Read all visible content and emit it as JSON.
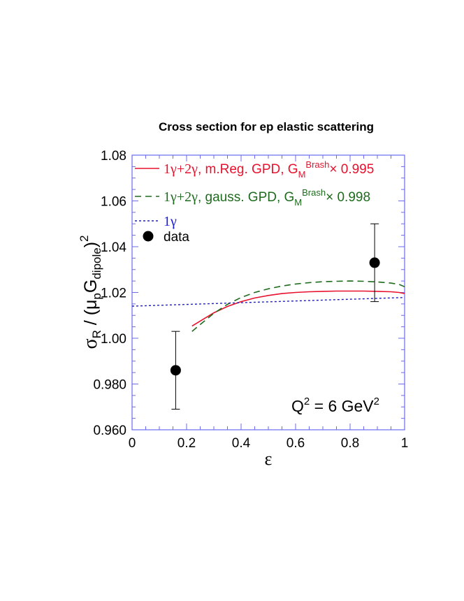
{
  "chart_data": {
    "type": "line",
    "title": "Cross section for ep elastic scattering",
    "xlabel": "ε",
    "ylabel": {
      "sigma": "σ",
      "sub_R": "R",
      "slash_open": " / (μ",
      "sub_p": "p",
      "G": "G",
      "sub_dipole": "dipole",
      "close": ")",
      "sup_2": "2"
    },
    "xlim": [
      0,
      1
    ],
    "ylim": [
      0.96,
      1.08
    ],
    "x_ticks": [
      "0",
      "0.2",
      "0.4",
      "0.6",
      "0.8",
      "1"
    ],
    "x_tick_values": [
      0,
      0.2,
      0.4,
      0.6,
      0.8,
      1
    ],
    "y_ticks": [
      "0.960",
      "0.980",
      "1.00",
      "1.02",
      "1.04",
      "1.06",
      "1.08"
    ],
    "y_tick_values": [
      0.96,
      0.98,
      1.0,
      1.02,
      1.04,
      1.06,
      1.08
    ],
    "annotation": {
      "q": "Q",
      "sup1": "2",
      "mid": " = 6 GeV",
      "sup2": "2"
    },
    "series": [
      {
        "legend": {
          "prefix": "1γ+2γ",
          "mid": ", m.Reg. GPD, G",
          "sub": "M",
          "sup": "Brash",
          "suffix": "× 0.995"
        },
        "color": "#e8112d",
        "style": "solid",
        "x": [
          0.22,
          0.25,
          0.3,
          0.35,
          0.4,
          0.45,
          0.5,
          0.55,
          0.6,
          0.65,
          0.7,
          0.75,
          0.8,
          0.85,
          0.9,
          0.95,
          0.98,
          1.0
        ],
        "y": [
          1.0053,
          1.0075,
          1.0111,
          1.0139,
          1.016,
          1.0176,
          1.0187,
          1.0195,
          1.02,
          1.0203,
          1.0205,
          1.0206,
          1.0206,
          1.0206,
          1.0205,
          1.0203,
          1.02,
          1.0195
        ]
      },
      {
        "legend": {
          "prefix": "1γ+2γ",
          "mid": ", gauss. GPD, G",
          "sub": "M",
          "sup": "Brash",
          "suffix": "× 0.998"
        },
        "color": "#1e6b1e",
        "style": "dashed",
        "x": [
          0.22,
          0.25,
          0.3,
          0.35,
          0.4,
          0.45,
          0.5,
          0.55,
          0.6,
          0.65,
          0.7,
          0.75,
          0.8,
          0.85,
          0.9,
          0.95,
          0.98,
          1.0
        ],
        "y": [
          1.003,
          1.006,
          1.0109,
          1.0148,
          1.0178,
          1.02,
          1.0216,
          1.0228,
          1.0237,
          1.0243,
          1.0247,
          1.0249,
          1.025,
          1.0249,
          1.0246,
          1.0241,
          1.0235,
          1.0225
        ]
      },
      {
        "legend": {
          "prefix": "1γ"
        },
        "color": "#1a1adc",
        "style": "dotted",
        "x": [
          0,
          1
        ],
        "y": [
          1.014,
          1.0178
        ]
      }
    ],
    "data_points": {
      "legend": "data",
      "x": [
        0.16,
        0.89
      ],
      "y": [
        0.986,
        1.033
      ],
      "y_err": [
        0.017,
        0.017
      ]
    }
  }
}
